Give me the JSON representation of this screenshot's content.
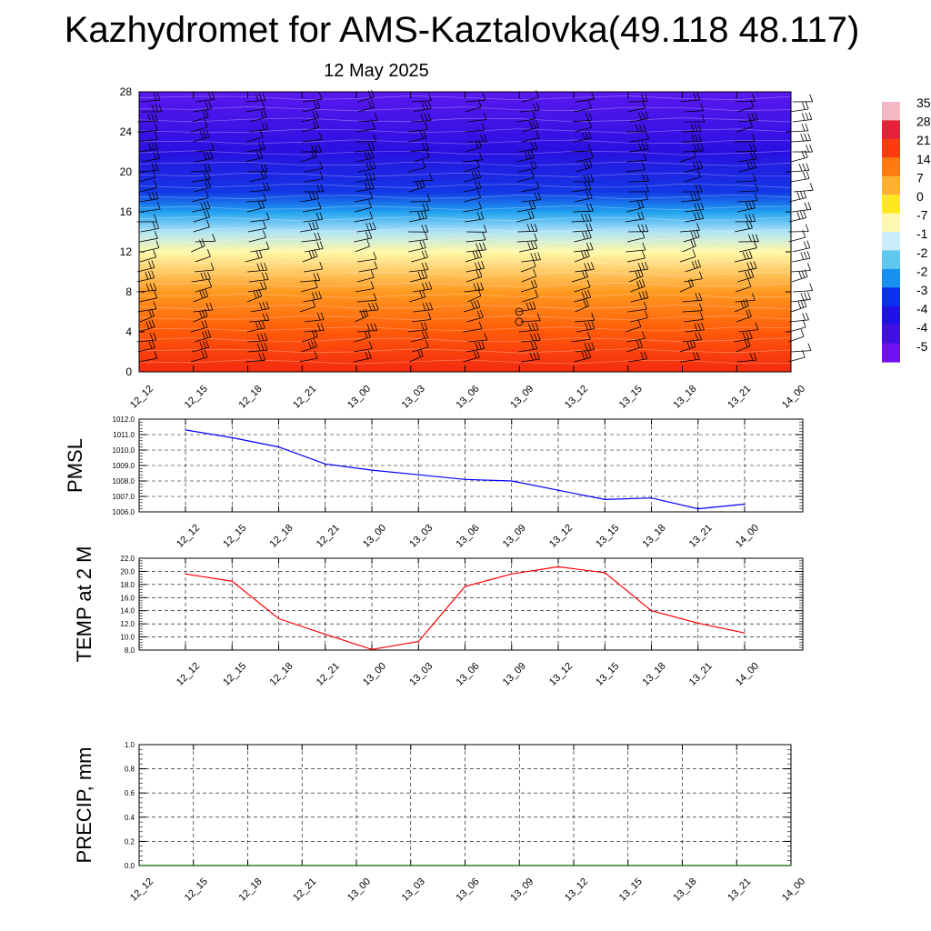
{
  "header": {
    "title": "Kazhydromet for AMS-Kaztalovka(49.118 48.117)",
    "date": "12 May 2025"
  },
  "times": [
    "12_12",
    "12_15",
    "12_18",
    "12_21",
    "13_00",
    "13_03",
    "13_06",
    "13_09",
    "13_12",
    "13_15",
    "13_18",
    "13_21",
    "14_00"
  ],
  "colors": {
    "pmsl_line": "#0000ff",
    "temp_line": "#ff0000",
    "precip_line": "#006400"
  },
  "chart_data": [
    {
      "type": "heatmap",
      "name": "vertical-cross-section",
      "y_ticks": [
        0,
        4,
        8,
        12,
        16,
        20,
        24,
        28
      ],
      "ylim": [
        0,
        28
      ],
      "colorbar_labels": [
        "35",
        "28",
        "21",
        "14",
        "7",
        "0",
        "-7",
        "-1",
        "-2",
        "-2",
        "-3",
        "-4",
        "-4",
        "-5"
      ],
      "colorbar_stops": [
        "#f4b8c4",
        "#e8203a",
        "#ff3a10",
        "#ff7a10",
        "#ffb030",
        "#ffe820",
        "#fff8b0",
        "#c8ecf8",
        "#60c8f0",
        "#1890f0",
        "#0a30f0",
        "#2010e8",
        "#4010e0",
        "#7010f0"
      ],
      "temperature_profile_by_level": [
        {
          "level": 0,
          "value": 20
        },
        {
          "level": 4,
          "value": 14
        },
        {
          "level": 8,
          "value": 7
        },
        {
          "level": 12,
          "value": -3
        },
        {
          "level": 14,
          "value": -15
        },
        {
          "level": 16,
          "value": -30
        },
        {
          "level": 18,
          "value": -42
        },
        {
          "level": 22,
          "value": -52
        },
        {
          "level": 28,
          "value": -50
        }
      ]
    },
    {
      "type": "line",
      "name": "pmsl",
      "ylabel": "PMSL",
      "categories": [
        "12_12",
        "12_15",
        "12_18",
        "12_21",
        "13_00",
        "13_03",
        "13_06",
        "13_09",
        "13_12",
        "13_15",
        "13_18",
        "13_21",
        "14_00"
      ],
      "values": [
        1011.3,
        1010.8,
        1010.2,
        1009.1,
        1008.7,
        1008.4,
        1008.1,
        1008.0,
        1007.4,
        1006.8,
        1006.9,
        1006.2,
        1006.5
      ],
      "ylim": [
        1006.0,
        1012.0
      ],
      "y_ticks": [
        "1006.0",
        "1007.0",
        "1008.0",
        "1009.0",
        "1010.0",
        "1011.0",
        "1012.0"
      ]
    },
    {
      "type": "line",
      "name": "temp-2m",
      "ylabel": "TEMP at 2 M",
      "categories": [
        "12_12",
        "12_15",
        "12_18",
        "12_21",
        "13_00",
        "13_03",
        "13_06",
        "13_09",
        "13_12",
        "13_15",
        "13_18",
        "13_21",
        "14_00"
      ],
      "values": [
        19.6,
        18.5,
        12.8,
        10.4,
        8.1,
        9.3,
        17.7,
        19.6,
        20.7,
        19.8,
        14.0,
        12.1,
        10.6
      ],
      "ylim": [
        8.0,
        22.0
      ],
      "y_ticks": [
        "8.0",
        "10.0",
        "12.0",
        "14.0",
        "16.0",
        "18.0",
        "20.0",
        "22.0"
      ]
    },
    {
      "type": "line",
      "name": "precip",
      "ylabel": "PRECIP, mm",
      "categories": [
        "12_12",
        "12_15",
        "12_18",
        "12_21",
        "13_00",
        "13_03",
        "13_06",
        "13_09",
        "13_12",
        "13_15",
        "13_18",
        "13_21",
        "14_00"
      ],
      "values": [
        0,
        0,
        0,
        0,
        0,
        0,
        0,
        0,
        0,
        0,
        0,
        0,
        0
      ],
      "ylim": [
        0.0,
        1.0
      ],
      "y_ticks": [
        "0.0",
        "0.2",
        "0.4",
        "0.6",
        "0.8",
        "1.0"
      ]
    }
  ]
}
